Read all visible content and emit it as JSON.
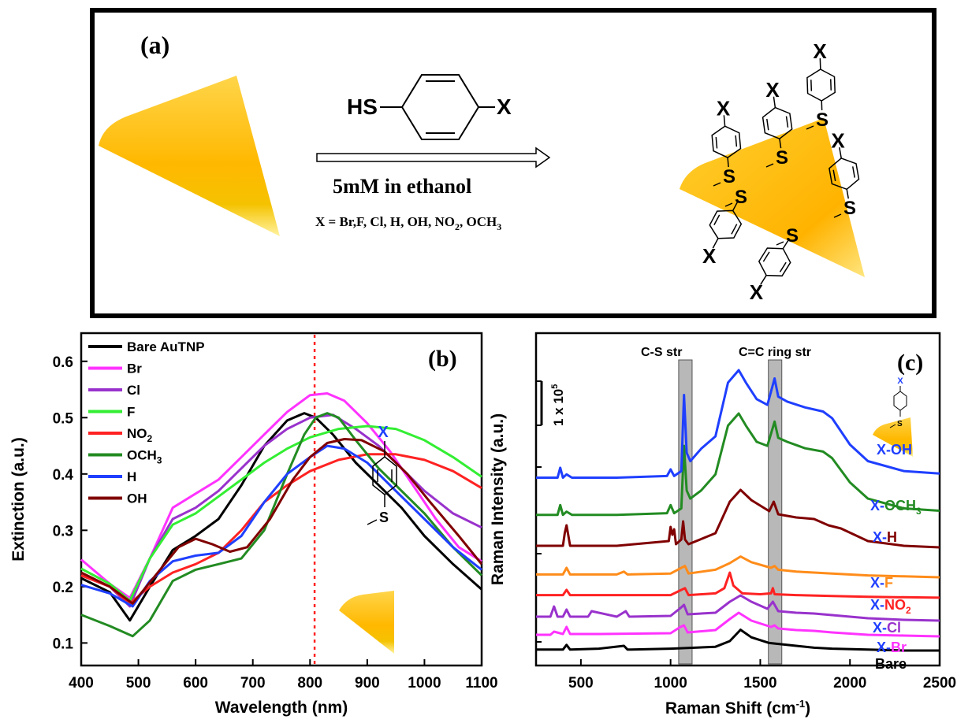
{
  "panel_a": {
    "label": "(a)",
    "reagent_hs": "HS",
    "reagent_x": "X",
    "condition": "5mM in ethanol",
    "substituents_prefix": "X = Br,F, Cl, H, OH, NO",
    "substituents_sub1": "2",
    "substituents_mid": ", OCH",
    "substituents_sub2": "3",
    "x_label": "X",
    "s_label": "S"
  },
  "panel_b": {
    "label": "(b)",
    "inset_x": "X",
    "inset_s": "S"
  },
  "panel_c": {
    "label": "(c)",
    "band_cs": "C-S str",
    "band_cc": "C=C ring str",
    "scale_bar": "1 x 10",
    "scale_exp": "5",
    "inset_x": "X",
    "inset_s": "S",
    "spectrum_labels": [
      "X-OH",
      "X-OCH3",
      "X-H",
      "X-F",
      "X-NO2",
      "X-Cl",
      "X-Br",
      "Bare"
    ]
  },
  "chart_data": [
    {
      "type": "line",
      "panel": "(b)",
      "xlabel": "Wavelength (nm)",
      "ylabel": "Extinction (a.u.)",
      "xlim": [
        400,
        1100
      ],
      "ylim": [
        0.06,
        0.65
      ],
      "xticks": [
        400,
        500,
        600,
        700,
        800,
        900,
        1000,
        1100
      ],
      "yticks": [
        0.1,
        0.2,
        0.3,
        0.4,
        0.5,
        0.6
      ],
      "reference_line_x": 808,
      "legend_position": "top-left",
      "series": [
        {
          "name": "Bare AuTNP",
          "color": "#000000",
          "x": [
            400,
            450,
            485,
            520,
            560,
            600,
            640,
            680,
            720,
            760,
            790,
            810,
            840,
            880,
            920,
            960,
            1000,
            1050,
            1100
          ],
          "y": [
            0.215,
            0.19,
            0.14,
            0.2,
            0.265,
            0.29,
            0.32,
            0.38,
            0.45,
            0.495,
            0.508,
            0.5,
            0.47,
            0.42,
            0.38,
            0.34,
            0.29,
            0.24,
            0.195
          ]
        },
        {
          "name": "Br",
          "color": "#ff33ff",
          "x": [
            400,
            450,
            485,
            520,
            560,
            600,
            640,
            680,
            720,
            760,
            800,
            830,
            860,
            900,
            940,
            980,
            1020,
            1060,
            1100
          ],
          "y": [
            0.248,
            0.205,
            0.18,
            0.25,
            0.34,
            0.365,
            0.39,
            0.43,
            0.47,
            0.51,
            0.54,
            0.543,
            0.53,
            0.49,
            0.44,
            0.38,
            0.32,
            0.27,
            0.245
          ]
        },
        {
          "name": "Cl",
          "color": "#9932cc",
          "x": [
            400,
            450,
            485,
            520,
            560,
            600,
            640,
            680,
            720,
            760,
            800,
            840,
            880,
            920,
            960,
            1000,
            1050,
            1100
          ],
          "y": [
            0.22,
            0.2,
            0.165,
            0.25,
            0.32,
            0.34,
            0.37,
            0.41,
            0.45,
            0.48,
            0.5,
            0.505,
            0.48,
            0.45,
            0.41,
            0.37,
            0.33,
            0.305
          ]
        },
        {
          "name": "F",
          "color": "#33ee33",
          "x": [
            400,
            450,
            485,
            520,
            560,
            600,
            640,
            680,
            720,
            760,
            800,
            850,
            900,
            950,
            1000,
            1050,
            1100
          ],
          "y": [
            0.232,
            0.205,
            0.175,
            0.25,
            0.31,
            0.33,
            0.36,
            0.39,
            0.42,
            0.445,
            0.465,
            0.48,
            0.485,
            0.48,
            0.46,
            0.43,
            0.395
          ]
        },
        {
          "name": "NO2",
          "color": "#ff2222",
          "x": [
            400,
            450,
            485,
            520,
            560,
            600,
            640,
            680,
            720,
            760,
            800,
            850,
            900,
            950,
            1000,
            1050,
            1100
          ],
          "y": [
            0.22,
            0.2,
            0.17,
            0.2,
            0.225,
            0.24,
            0.26,
            0.3,
            0.35,
            0.38,
            0.405,
            0.425,
            0.435,
            0.435,
            0.425,
            0.405,
            0.375
          ]
        },
        {
          "name": "OCH3",
          "color": "#228b22",
          "x": [
            400,
            450,
            490,
            520,
            560,
            600,
            640,
            680,
            720,
            760,
            790,
            810,
            830,
            850,
            880,
            920,
            960,
            1000,
            1050,
            1100
          ],
          "y": [
            0.15,
            0.13,
            0.112,
            0.14,
            0.21,
            0.23,
            0.24,
            0.25,
            0.3,
            0.4,
            0.47,
            0.5,
            0.508,
            0.5,
            0.46,
            0.41,
            0.37,
            0.33,
            0.27,
            0.22
          ]
        },
        {
          "name": "H",
          "color": "#1f3fff",
          "x": [
            400,
            450,
            490,
            520,
            560,
            600,
            640,
            680,
            720,
            760,
            800,
            830,
            860,
            900,
            950,
            1000,
            1050,
            1100
          ],
          "y": [
            0.203,
            0.188,
            0.165,
            0.21,
            0.245,
            0.255,
            0.26,
            0.29,
            0.35,
            0.4,
            0.43,
            0.45,
            0.445,
            0.42,
            0.37,
            0.32,
            0.27,
            0.23
          ]
        },
        {
          "name": "OH",
          "color": "#800000",
          "x": [
            400,
            450,
            490,
            530,
            570,
            600,
            630,
            660,
            690,
            730,
            770,
            800,
            830,
            860,
            890,
            930,
            970,
            1010,
            1060,
            1100
          ],
          "y": [
            0.225,
            0.2,
            0.17,
            0.22,
            0.27,
            0.285,
            0.275,
            0.262,
            0.27,
            0.32,
            0.39,
            0.43,
            0.455,
            0.462,
            0.46,
            0.44,
            0.4,
            0.35,
            0.29,
            0.24
          ]
        }
      ]
    },
    {
      "type": "line",
      "panel": "(c)",
      "xlabel": "Raman Shift (cm-1)",
      "ylabel": "Raman Intensity (a.u.)",
      "xlim": [
        250,
        2500
      ],
      "xticks": [
        500,
        1000,
        1500,
        2000,
        2500
      ],
      "shaded_bands": [
        [
          1045,
          1120
        ],
        [
          1545,
          1620
        ]
      ],
      "series": [
        {
          "name": "Bare",
          "color": "#000000",
          "offset": 0,
          "x": [
            250,
            400,
            420,
            440,
            600,
            740,
            760,
            780,
            1000,
            1250,
            1330,
            1390,
            1450,
            1550,
            1700,
            1800,
            1900,
            2100,
            2300,
            2500
          ],
          "y": [
            1,
            1,
            6,
            1,
            2,
            5,
            1,
            1,
            2,
            4,
            10,
            22,
            14,
            8,
            5,
            3,
            2,
            1,
            0,
            0
          ]
        },
        {
          "name": "Br",
          "color": "#ff33ff",
          "offset": 1,
          "x": [
            250,
            330,
            350,
            400,
            420,
            440,
            600,
            1000,
            1055,
            1075,
            1095,
            1250,
            1330,
            1380,
            1450,
            1560,
            1580,
            1600,
            1700,
            1800,
            1900,
            2100,
            2300,
            2500
          ],
          "y": [
            2,
            2,
            6,
            3,
            12,
            3,
            3,
            4,
            12,
            14,
            5,
            8,
            22,
            30,
            20,
            12,
            14,
            10,
            8,
            7,
            5,
            2,
            1,
            0
          ]
        },
        {
          "name": "Cl",
          "color": "#9932cc",
          "offset": 2,
          "x": [
            250,
            330,
            350,
            370,
            400,
            420,
            440,
            540,
            560,
            700,
            750,
            770,
            1000,
            1055,
            1075,
            1095,
            1250,
            1330,
            1390,
            1450,
            1540,
            1570,
            1600,
            1700,
            1800,
            1900,
            2100,
            2300,
            2500
          ],
          "y": [
            5,
            5,
            18,
            5,
            5,
            14,
            5,
            5,
            12,
            5,
            12,
            5,
            6,
            16,
            20,
            8,
            10,
            24,
            32,
            24,
            15,
            24,
            12,
            10,
            9,
            7,
            3,
            1,
            0
          ]
        },
        {
          "name": "NO2",
          "color": "#ff2222",
          "offset": 3,
          "x": [
            250,
            400,
            420,
            440,
            700,
            1000,
            1060,
            1080,
            1100,
            1250,
            1300,
            1330,
            1350,
            1400,
            1500,
            1560,
            1570,
            1580,
            1700,
            1900,
            2100,
            2500
          ],
          "y": [
            4,
            4,
            10,
            4,
            4,
            4,
            10,
            12,
            4,
            6,
            12,
            30,
            15,
            6,
            5,
            6,
            12,
            5,
            4,
            3,
            2,
            1
          ]
        },
        {
          "name": "F",
          "color": "#ff8c1a",
          "offset": 4,
          "x": [
            250,
            400,
            420,
            440,
            700,
            740,
            760,
            1000,
            1060,
            1080,
            1100,
            1250,
            1330,
            1390,
            1450,
            1560,
            1580,
            1600,
            1700,
            1800,
            1900,
            2100,
            2300,
            2500
          ],
          "y": [
            3,
            3,
            10,
            3,
            3,
            6,
            3,
            4,
            10,
            12,
            4,
            8,
            15,
            22,
            16,
            10,
            12,
            8,
            6,
            5,
            4,
            2,
            1,
            0
          ]
        },
        {
          "name": "H",
          "color": "#800000",
          "offset": 5,
          "x": [
            250,
            400,
            410,
            420,
            440,
            700,
            990,
            1000,
            1010,
            1020,
            1030,
            1060,
            1070,
            1080,
            1100,
            1250,
            1330,
            1390,
            1450,
            1550,
            1575,
            1600,
            1700,
            1800,
            1880,
            1950,
            2100,
            2300,
            2500
          ],
          "y": [
            4,
            4,
            20,
            30,
            4,
            4,
            10,
            28,
            18,
            25,
            6,
            12,
            35,
            12,
            6,
            20,
            60,
            75,
            62,
            48,
            60,
            44,
            40,
            38,
            30,
            26,
            10,
            4,
            2
          ]
        },
        {
          "name": "OCH3",
          "color": "#228b22",
          "offset": 6,
          "x": [
            250,
            370,
            385,
            400,
            420,
            450,
            700,
            980,
            1000,
            1020,
            1060,
            1075,
            1090,
            1110,
            1170,
            1250,
            1320,
            1380,
            1420,
            1480,
            1540,
            1580,
            1600,
            1650,
            1750,
            1850,
            1900,
            2000,
            2100,
            2300,
            2500
          ],
          "y": [
            10,
            10,
            22,
            10,
            14,
            10,
            10,
            12,
            22,
            12,
            18,
            95,
            40,
            30,
            40,
            60,
            120,
            135,
            120,
            100,
            95,
            125,
            105,
            100,
            92,
            88,
            80,
            50,
            30,
            18,
            15
          ]
        },
        {
          "name": "OH",
          "color": "#1f3fff",
          "offset": 7,
          "x": [
            250,
            370,
            385,
            400,
            420,
            450,
            700,
            980,
            1000,
            1020,
            1060,
            1075,
            1090,
            1110,
            1170,
            1250,
            1320,
            1380,
            1420,
            1480,
            1540,
            1580,
            1600,
            1650,
            1750,
            1850,
            1900,
            2000,
            2100,
            2300,
            2500
          ],
          "y": [
            10,
            10,
            22,
            10,
            14,
            10,
            10,
            12,
            20,
            12,
            18,
            110,
            40,
            30,
            45,
            60,
            125,
            140,
            125,
            105,
            98,
            130,
            108,
            102,
            95,
            90,
            82,
            50,
            30,
            18,
            15
          ]
        }
      ]
    }
  ]
}
